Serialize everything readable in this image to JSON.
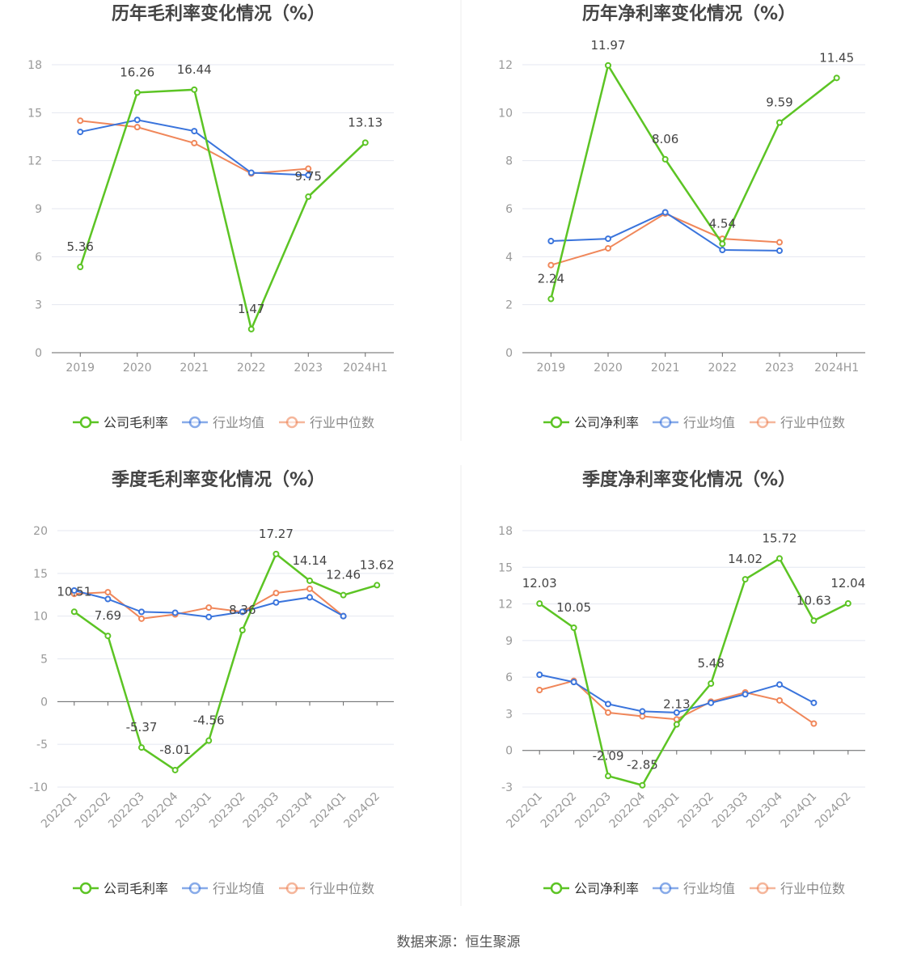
{
  "footer": {
    "source": "数据来源：恒生聚源"
  },
  "colors": {
    "company": "#5cc424",
    "avg": "#3a74dc",
    "median": "#f0875a",
    "axis": "#666666",
    "grid": "#e4e7f0",
    "tick": "#999999",
    "title": "#444444",
    "label": "#444444"
  },
  "chart_data": [
    {
      "type": "line",
      "title": "历年毛利率变化情况（%）",
      "categories": [
        "2019",
        "2020",
        "2021",
        "2022",
        "2023",
        "2024H1"
      ],
      "ylim": [
        0,
        18
      ],
      "yticks": [
        "0",
        "3",
        "6",
        "9",
        "12",
        "15",
        "18"
      ],
      "rotate_x": false,
      "grid": true,
      "legend_position": "bottom",
      "series": [
        {
          "name": "公司毛利率",
          "role": "company",
          "values": [
            5.36,
            16.26,
            16.44,
            1.47,
            9.75,
            13.13
          ],
          "labels": [
            "5.36",
            "16.26",
            "16.44",
            "1.47",
            "9.75",
            "13.13"
          ]
        },
        {
          "name": "行业均值",
          "role": "avg",
          "values": [
            13.8,
            14.55,
            13.85,
            11.25,
            11.1,
            null
          ]
        },
        {
          "name": "行业中位数",
          "role": "median",
          "values": [
            14.5,
            14.1,
            13.1,
            11.2,
            11.5,
            null
          ]
        }
      ]
    },
    {
      "type": "line",
      "title": "历年净利率变化情况（%）",
      "categories": [
        "2019",
        "2020",
        "2021",
        "2022",
        "2023",
        "2024H1"
      ],
      "ylim": [
        0,
        12
      ],
      "yticks": [
        "0",
        "2",
        "4",
        "6",
        "8",
        "10",
        "12"
      ],
      "rotate_x": false,
      "grid": true,
      "legend_position": "bottom",
      "series": [
        {
          "name": "公司净利率",
          "role": "company",
          "values": [
            2.24,
            11.97,
            8.06,
            4.54,
            9.59,
            11.45
          ],
          "labels": [
            "2.24",
            "11.97",
            "8.06",
            "4.54",
            "9.59",
            "11.45"
          ]
        },
        {
          "name": "行业均值",
          "role": "avg",
          "values": [
            4.65,
            4.75,
            5.85,
            4.28,
            4.25,
            null
          ]
        },
        {
          "name": "行业中位数",
          "role": "median",
          "values": [
            3.65,
            4.35,
            5.8,
            4.75,
            4.6,
            null
          ]
        }
      ]
    },
    {
      "type": "line",
      "title": "季度毛利率变化情况（%）",
      "categories": [
        "2022Q1",
        "2022Q2",
        "2022Q3",
        "2022Q4",
        "2023Q1",
        "2023Q2",
        "2023Q3",
        "2023Q4",
        "2024Q1",
        "2024Q2"
      ],
      "ylim": [
        -10,
        20
      ],
      "yticks": [
        "-10",
        "-5",
        "0",
        "5",
        "10",
        "15",
        "20"
      ],
      "rotate_x": true,
      "grid": true,
      "legend_position": "bottom",
      "series": [
        {
          "name": "公司毛利率",
          "role": "company",
          "values": [
            10.51,
            7.69,
            -5.37,
            -8.01,
            -4.56,
            8.36,
            17.27,
            14.14,
            12.46,
            13.62
          ],
          "labels": [
            "10.51",
            "7.69",
            "-5.37",
            "-8.01",
            "-4.56",
            "8.36",
            "17.27",
            "14.14",
            "12.46",
            "13.62"
          ]
        },
        {
          "name": "行业均值",
          "role": "avg",
          "values": [
            13.0,
            12.0,
            10.5,
            10.4,
            9.9,
            10.5,
            11.6,
            12.2,
            10.0,
            null
          ]
        },
        {
          "name": "行业中位数",
          "role": "median",
          "values": [
            12.6,
            12.8,
            9.7,
            10.2,
            11.0,
            10.5,
            12.7,
            13.2,
            10.0,
            null
          ]
        }
      ]
    },
    {
      "type": "line",
      "title": "季度净利率变化情况（%）",
      "categories": [
        "2022Q1",
        "2022Q2",
        "2022Q3",
        "2022Q4",
        "2023Q1",
        "2023Q2",
        "2023Q3",
        "2023Q4",
        "2024Q1",
        "2024Q2"
      ],
      "ylim": [
        -3,
        18
      ],
      "yticks": [
        "-3",
        "0",
        "3",
        "6",
        "9",
        "12",
        "15",
        "18"
      ],
      "rotate_x": true,
      "grid": true,
      "legend_position": "bottom",
      "series": [
        {
          "name": "公司净利率",
          "role": "company",
          "values": [
            12.03,
            10.05,
            -2.09,
            -2.85,
            2.13,
            5.48,
            14.02,
            15.72,
            10.63,
            12.04
          ],
          "labels": [
            "12.03",
            "10.05",
            "-2.09",
            "-2.85",
            "2.13",
            "5.48",
            "14.02",
            "15.72",
            "10.63",
            "12.04"
          ]
        },
        {
          "name": "行业均值",
          "role": "avg",
          "values": [
            6.2,
            5.6,
            3.8,
            3.2,
            3.1,
            3.9,
            4.6,
            5.4,
            3.9,
            null
          ]
        },
        {
          "name": "行业中位数",
          "role": "median",
          "values": [
            4.95,
            5.7,
            3.1,
            2.8,
            2.55,
            4.0,
            4.75,
            4.1,
            2.2,
            null
          ]
        }
      ]
    }
  ]
}
